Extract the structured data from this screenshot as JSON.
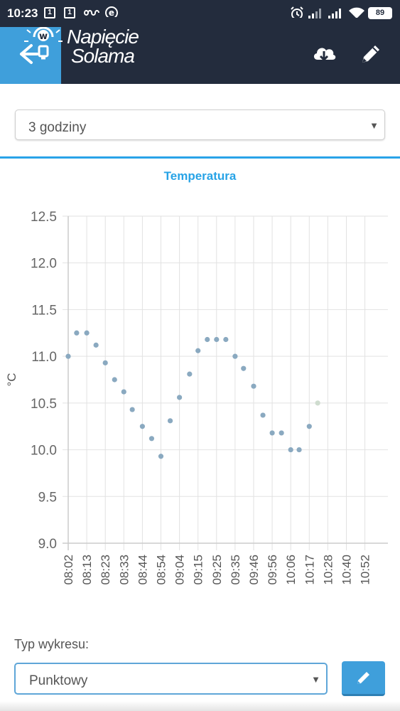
{
  "status_bar": {
    "time": "10:23",
    "sim_slot_1": "1",
    "sim_slot_2": "1",
    "battery": "89"
  },
  "header": {
    "brand_line1": "Napięcie",
    "brand_line2": "Solama",
    "back_icon": "back-arrow-icon",
    "download_icon": "cloud-download-icon",
    "edit_icon": "pencil-icon"
  },
  "range_select": {
    "value": "3 godziny"
  },
  "chart_data": {
    "type": "scatter",
    "title": "Temperatura",
    "ylabel": "°C",
    "xlabel": "",
    "ylim": [
      9.0,
      12.5
    ],
    "y_ticks": [
      "12.5",
      "12.0",
      "11.5",
      "11.0",
      "10.5",
      "10.0",
      "9.5",
      "9.0"
    ],
    "x_ticks": [
      "08:02",
      "08:13",
      "08:23",
      "08:33",
      "08:44",
      "08:54",
      "09:04",
      "09:15",
      "09:25",
      "09:35",
      "09:46",
      "09:56",
      "10:06",
      "10:17",
      "10:28",
      "10:40",
      "10:52"
    ],
    "x": [
      "08:02",
      "08:07",
      "08:13",
      "08:18",
      "08:23",
      "08:28",
      "08:33",
      "08:38",
      "08:44",
      "08:49",
      "08:54",
      "08:59",
      "09:04",
      "09:10",
      "09:15",
      "09:20",
      "09:25",
      "09:30",
      "09:35",
      "09:40",
      "09:46",
      "09:51",
      "09:56",
      "10:01",
      "10:06",
      "10:11",
      "10:17",
      "10:22"
    ],
    "values": [
      11.0,
      11.25,
      11.25,
      11.12,
      10.93,
      10.75,
      10.62,
      10.43,
      10.25,
      10.12,
      9.93,
      10.31,
      10.56,
      10.81,
      11.06,
      11.18,
      11.18,
      11.18,
      11.0,
      10.87,
      10.68,
      10.37,
      10.18,
      10.18,
      10.0,
      10.0,
      10.25,
      10.5
    ],
    "grid": true,
    "point_color": "#8aa9c0"
  },
  "chart_type": {
    "label": "Typ wykresu:",
    "value": "Punktowy",
    "edit_icon": "pencil-icon"
  },
  "colors": {
    "header_bg": "#232c3d",
    "accent": "#3f9fdb",
    "title": "#27a3e6"
  }
}
